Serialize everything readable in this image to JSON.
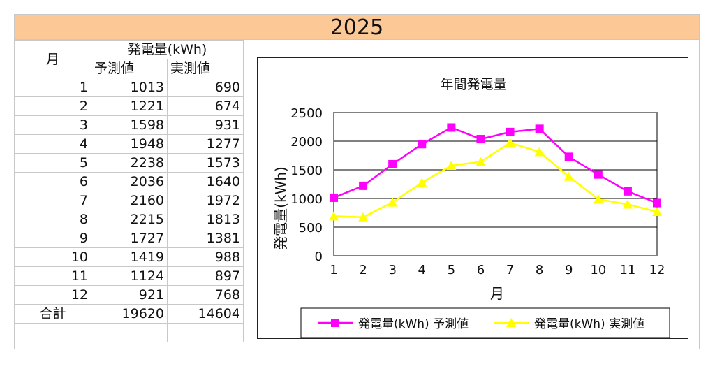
{
  "title": "2025",
  "table": {
    "month_header": "月",
    "group_header": "発電量(kWh)",
    "col_forecast": "予測値",
    "col_actual": "実測値",
    "rows": [
      {
        "month": "1",
        "forecast": "1013",
        "actual": "690"
      },
      {
        "month": "2",
        "forecast": "1221",
        "actual": "674"
      },
      {
        "month": "3",
        "forecast": "1598",
        "actual": "931"
      },
      {
        "month": "4",
        "forecast": "1948",
        "actual": "1277"
      },
      {
        "month": "5",
        "forecast": "2238",
        "actual": "1573"
      },
      {
        "month": "6",
        "forecast": "2036",
        "actual": "1640"
      },
      {
        "month": "7",
        "forecast": "2160",
        "actual": "1972"
      },
      {
        "month": "8",
        "forecast": "2215",
        "actual": "1813"
      },
      {
        "month": "9",
        "forecast": "1727",
        "actual": "1381"
      },
      {
        "month": "10",
        "forecast": "1419",
        "actual": "988"
      },
      {
        "month": "11",
        "forecast": "1124",
        "actual": "897"
      },
      {
        "month": "12",
        "forecast": "921",
        "actual": "768"
      }
    ],
    "total_label": "合計",
    "total_forecast": "19620",
    "total_actual": "14604"
  },
  "chart_data": {
    "type": "line",
    "title": "年間発電量",
    "xlabel": "月",
    "ylabel": "発電量(kWh)",
    "categories": [
      "1",
      "2",
      "3",
      "4",
      "5",
      "6",
      "7",
      "8",
      "9",
      "10",
      "11",
      "12"
    ],
    "ylim": [
      0,
      2500
    ],
    "yticks": [
      "0",
      "500",
      "1000",
      "1500",
      "2000",
      "2500"
    ],
    "grid": true,
    "legend": "bottom",
    "series": [
      {
        "name": "発電量(kWh) 予測値",
        "color": "#ff00ff",
        "marker": "square",
        "values": [
          1013,
          1221,
          1598,
          1948,
          2238,
          2036,
          2160,
          2215,
          1727,
          1419,
          1124,
          921
        ]
      },
      {
        "name": "発電量(kWh) 実測値",
        "color": "#ffff00",
        "marker": "triangle",
        "values": [
          690,
          674,
          931,
          1277,
          1573,
          1640,
          1972,
          1813,
          1381,
          988,
          897,
          768
        ]
      }
    ]
  }
}
